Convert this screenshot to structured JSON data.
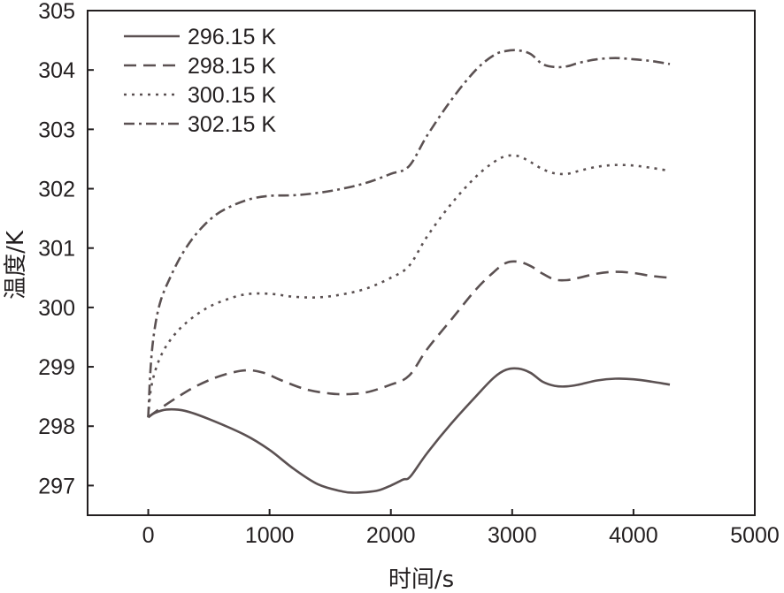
{
  "chart_data": {
    "type": "line",
    "title": "",
    "xlabel": "时间/s",
    "ylabel": "温度/K",
    "xlim": [
      -500,
      5000
    ],
    "ylim": [
      296.5,
      305
    ],
    "xticks": [
      0,
      1000,
      2000,
      3000,
      4000,
      5000
    ],
    "yticks": [
      297,
      298,
      299,
      300,
      301,
      302,
      303,
      304,
      305
    ],
    "grid": false,
    "legend_position": "top-left",
    "line_color": "#5b5152",
    "series": [
      {
        "name": "296.15 K",
        "dash": "solid",
        "x": [
          0,
          50,
          150,
          300,
          500,
          800,
          1000,
          1200,
          1400,
          1600,
          1700,
          1800,
          1900,
          2000,
          2100,
          2160,
          2300,
          2500,
          2700,
          2850,
          2950,
          3050,
          3150,
          3250,
          3350,
          3450,
          3550,
          3700,
          3850,
          4000,
          4150,
          4300
        ],
        "y": [
          298.15,
          298.22,
          298.28,
          298.26,
          298.12,
          297.85,
          297.6,
          297.28,
          297.02,
          296.9,
          296.88,
          296.89,
          296.92,
          297.0,
          297.1,
          297.15,
          297.55,
          298.05,
          298.5,
          298.82,
          298.95,
          298.97,
          298.9,
          298.75,
          298.68,
          298.67,
          298.7,
          298.77,
          298.8,
          298.79,
          298.75,
          298.7
        ]
      },
      {
        "name": "298.15 K",
        "dash": "dashed",
        "x": [
          0,
          100,
          250,
          400,
          600,
          800,
          950,
          1100,
          1300,
          1500,
          1650,
          1800,
          2000,
          2150,
          2300,
          2500,
          2700,
          2850,
          2950,
          3050,
          3150,
          3250,
          3350,
          3450,
          3550,
          3700,
          3850,
          4000,
          4150,
          4300
        ],
        "y": [
          298.15,
          298.3,
          298.5,
          298.68,
          298.85,
          298.94,
          298.9,
          298.77,
          298.62,
          298.55,
          298.54,
          298.57,
          298.7,
          298.85,
          299.3,
          299.8,
          300.3,
          300.6,
          300.75,
          300.77,
          300.7,
          300.57,
          300.47,
          300.46,
          300.5,
          300.57,
          300.6,
          300.58,
          300.53,
          300.5
        ]
      },
      {
        "name": "300.15 K",
        "dash": "dotted",
        "x": [
          0,
          20,
          60,
          120,
          200,
          300,
          450,
          600,
          800,
          1000,
          1200,
          1400,
          1600,
          1800,
          2000,
          2150,
          2300,
          2500,
          2700,
          2850,
          2950,
          3050,
          3150,
          3250,
          3350,
          3450,
          3550,
          3700,
          3850,
          4000,
          4150,
          4300
        ],
        "y": [
          298.15,
          298.6,
          298.95,
          299.25,
          299.5,
          299.72,
          299.95,
          300.1,
          300.22,
          300.23,
          300.18,
          300.17,
          300.22,
          300.32,
          300.5,
          300.7,
          301.2,
          301.75,
          302.2,
          302.45,
          302.55,
          302.55,
          302.45,
          302.33,
          302.26,
          302.25,
          302.3,
          302.37,
          302.4,
          302.39,
          302.35,
          302.3
        ]
      },
      {
        "name": "302.15 K",
        "dash": "dashdot",
        "x": [
          0,
          20,
          50,
          100,
          180,
          280,
          400,
          550,
          700,
          850,
          1000,
          1200,
          1400,
          1600,
          1800,
          2000,
          2150,
          2300,
          2500,
          2700,
          2850,
          2950,
          3050,
          3150,
          3250,
          3350,
          3450,
          3550,
          3700,
          3850,
          4000,
          4150,
          4300
        ],
        "y": [
          298.15,
          299.0,
          299.6,
          300.1,
          300.5,
          300.9,
          301.25,
          301.55,
          301.72,
          301.83,
          301.88,
          301.89,
          301.93,
          302.0,
          302.1,
          302.25,
          302.38,
          302.9,
          303.5,
          304.0,
          304.25,
          304.32,
          304.33,
          304.27,
          304.1,
          304.05,
          304.06,
          304.12,
          304.18,
          304.2,
          304.18,
          304.15,
          304.1
        ]
      }
    ]
  }
}
